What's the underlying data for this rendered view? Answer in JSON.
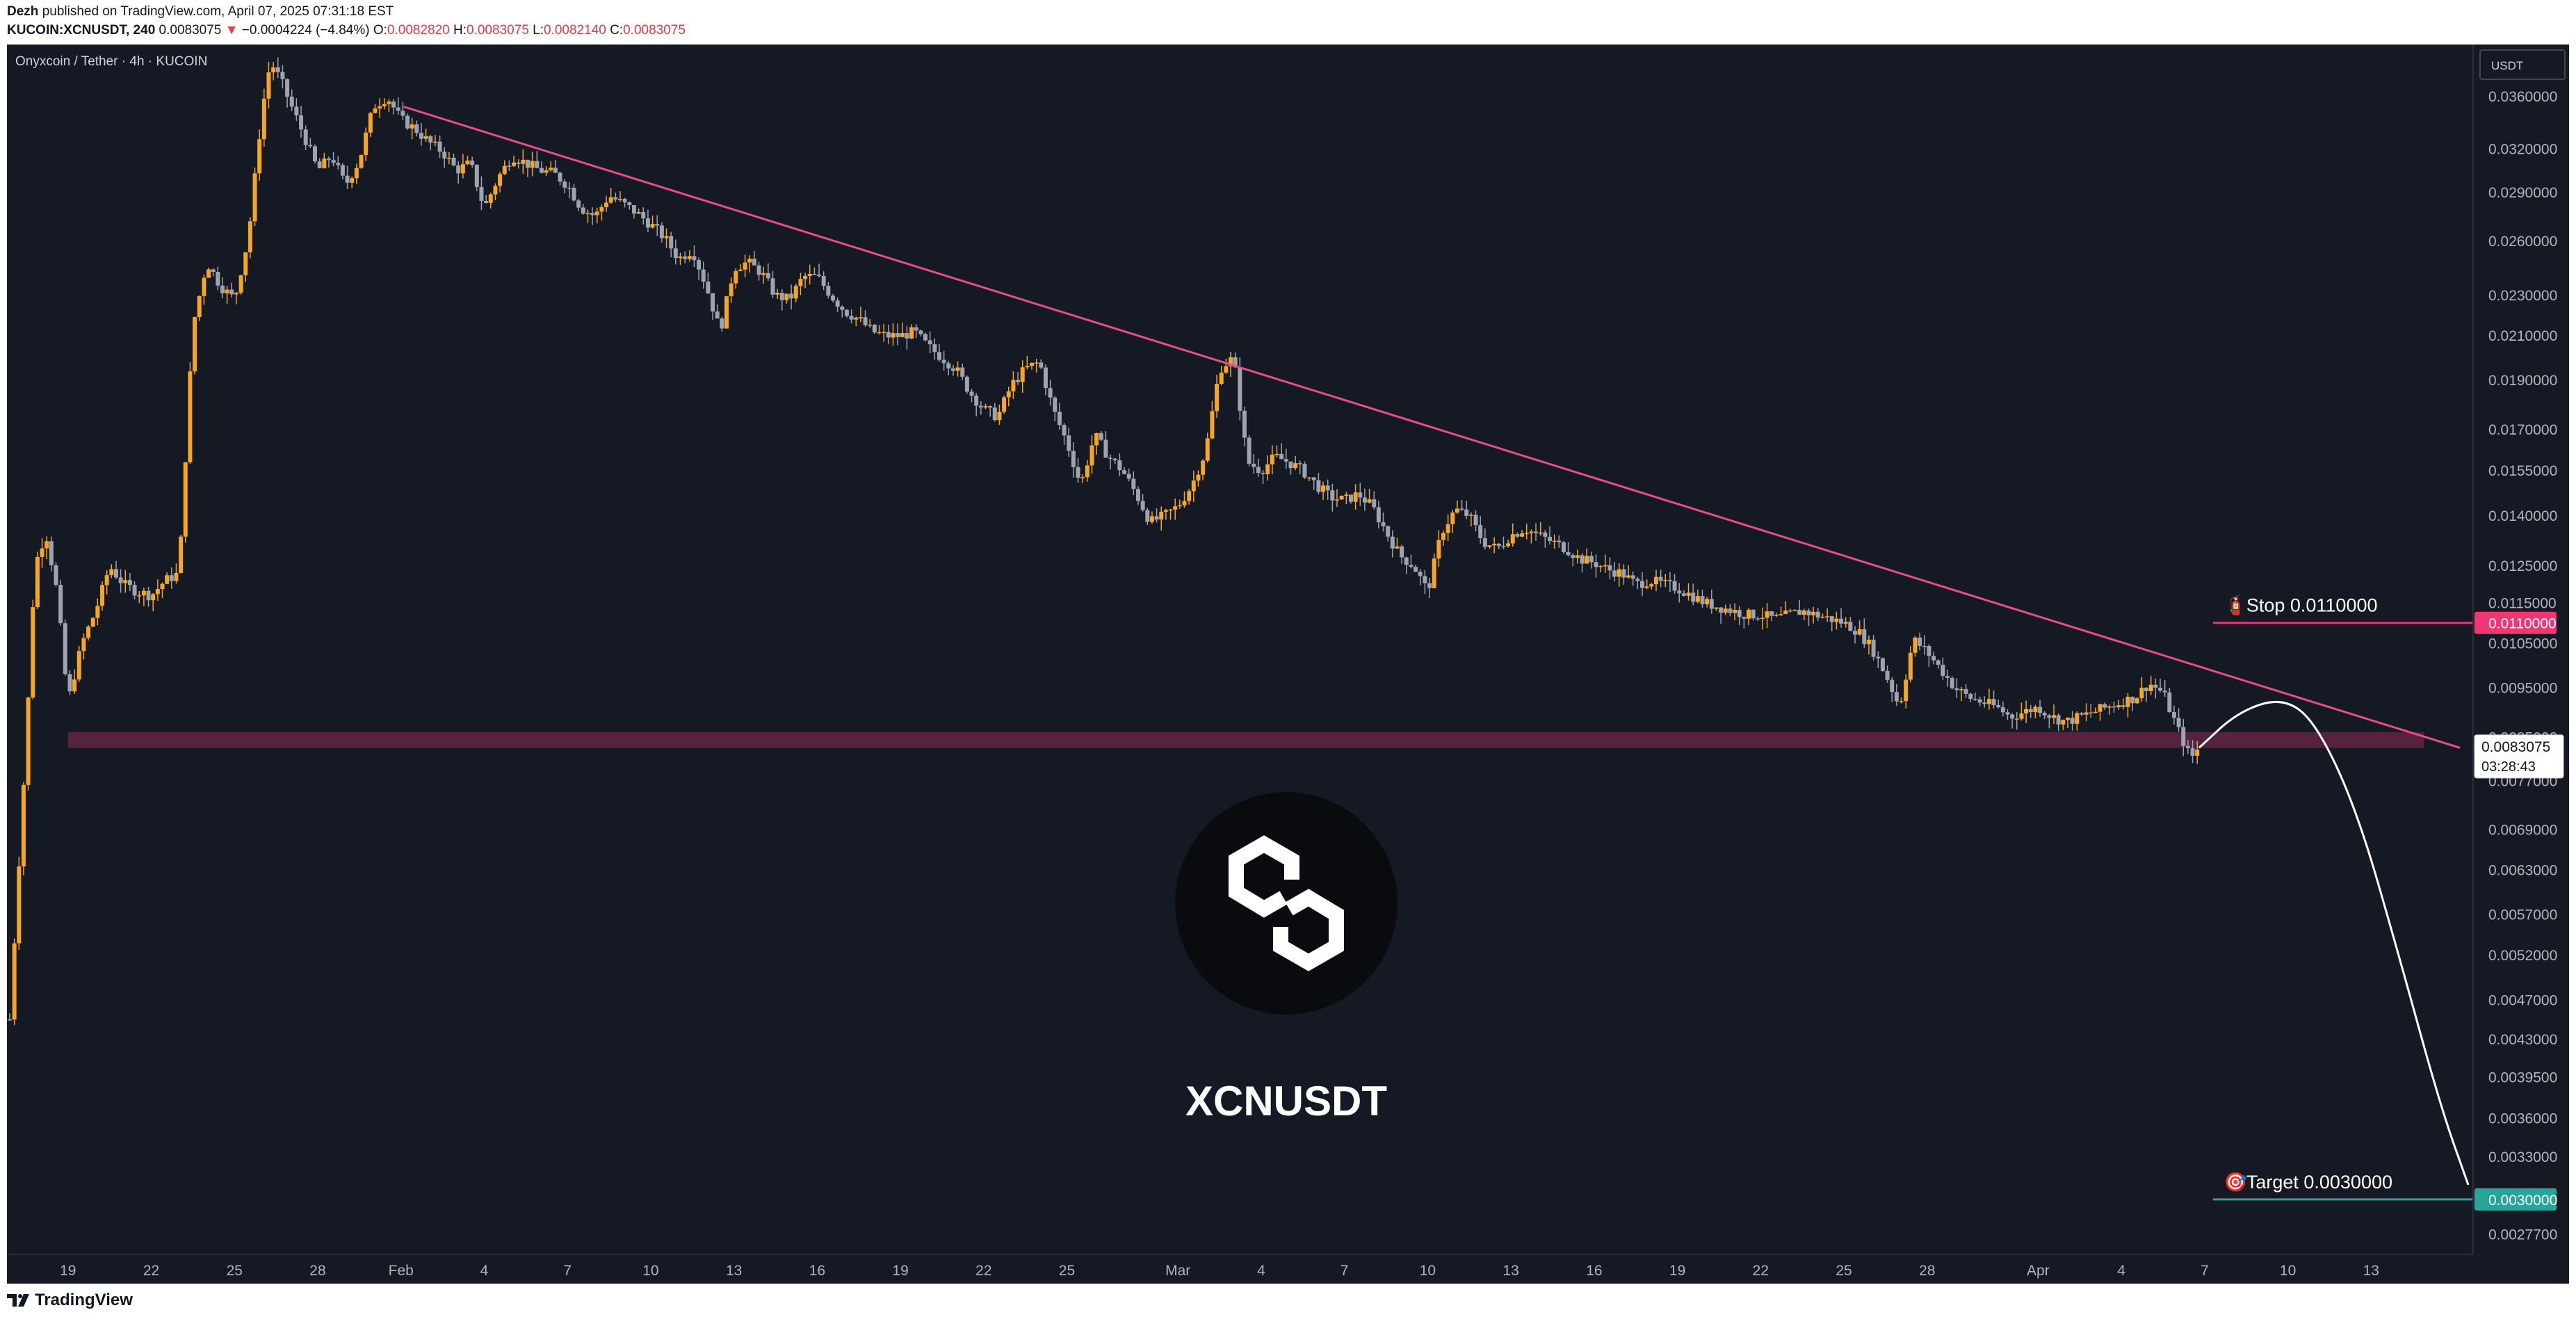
{
  "header": {
    "author": "Dezh",
    "published_text": "published on TradingView.com, April 07, 2025 07:31:18 EST",
    "symbol_line": "KUCOIN:XCNUSDT, 240",
    "last_price": "0.0083075",
    "change_arrow": "▼",
    "change": "−0.0004224 (−4.84%)",
    "o_label": "O:",
    "o_value": "0.0082820",
    "h_label": "H:",
    "h_value": "0.0083075",
    "l_label": "L:",
    "l_value": "0.0082140",
    "c_label": "C:",
    "c_value": "0.0083075"
  },
  "footer": {
    "brand": "TradingView"
  },
  "colors": {
    "background": "#151924",
    "candle_up": "#f5a623",
    "candle_down": "#9ea3b0",
    "trendline": "#e84c8a",
    "zone": "#5e2340",
    "stop": "#f23673",
    "target": "#26a69a",
    "projection": "#ffffff"
  },
  "chart_data": {
    "type": "candlestick",
    "pair_label": "Onyxcoin / Tether · 4h · KUCOIN",
    "currency": "USDT",
    "watermark": "XCNUSDT",
    "watermark_icon": "onyxcoin-logo-icon",
    "y_scale": "log",
    "ylim": [
      0.00265,
      0.0405
    ],
    "y_ticks": [
      "0.0360000",
      "0.0320000",
      "0.0290000",
      "0.0260000",
      "0.0230000",
      "0.0210000",
      "0.0190000",
      "0.0170000",
      "0.0155000",
      "0.0140000",
      "0.0125000",
      "0.0115000",
      "0.0105000",
      "0.0095000",
      "0.0077000",
      "0.0069000",
      "0.0063000",
      "0.0057000",
      "0.0052000",
      "0.0047000",
      "0.0043000",
      "0.0039500",
      "0.0036000",
      "0.0033000",
      "0.0027700"
    ],
    "x_ticks": [
      "19",
      "22",
      "25",
      "28",
      "Feb",
      "4",
      "7",
      "10",
      "13",
      "16",
      "19",
      "22",
      "25",
      "Mar",
      "4",
      "7",
      "10",
      "13",
      "16",
      "19",
      "22",
      "25",
      "28",
      "Apr",
      "4",
      "7",
      "10",
      "13"
    ],
    "x_tick_days": [
      0,
      3,
      6,
      9,
      12,
      15,
      18,
      21,
      24,
      27,
      30,
      33,
      36,
      40,
      43,
      46,
      49,
      52,
      55,
      58,
      61,
      64,
      67,
      71,
      74,
      77,
      80,
      83
    ],
    "xlim_days": [
      -2.2,
      86.5
    ],
    "price_path": [
      [
        -2.1,
        0.0045
      ],
      [
        -1.8,
        0.0062
      ],
      [
        -1.5,
        0.0085
      ],
      [
        -1.2,
        0.0125
      ],
      [
        -0.8,
        0.0135
      ],
      [
        -0.4,
        0.0118
      ],
      [
        0,
        0.0092
      ],
      [
        0.5,
        0.0105
      ],
      [
        1,
        0.0113
      ],
      [
        1.5,
        0.0125
      ],
      [
        2,
        0.012
      ],
      [
        2.5,
        0.0118
      ],
      [
        3,
        0.0117
      ],
      [
        3.5,
        0.0121
      ],
      [
        4,
        0.0123
      ],
      [
        4.5,
        0.0215
      ],
      [
        5,
        0.0248
      ],
      [
        5.5,
        0.0235
      ],
      [
        6,
        0.0228
      ],
      [
        6.5,
        0.0262
      ],
      [
        7,
        0.035
      ],
      [
        7.3,
        0.039
      ],
      [
        7.7,
        0.0372
      ],
      [
        8,
        0.0355
      ],
      [
        8.5,
        0.033
      ],
      [
        9,
        0.0305
      ],
      [
        9.5,
        0.0315
      ],
      [
        10,
        0.0295
      ],
      [
        10.5,
        0.0312
      ],
      [
        11,
        0.0352
      ],
      [
        11.5,
        0.036
      ],
      [
        12,
        0.0342
      ],
      [
        12.5,
        0.0335
      ],
      [
        13,
        0.0325
      ],
      [
        13.5,
        0.0318
      ],
      [
        14,
        0.0305
      ],
      [
        14.5,
        0.031
      ],
      [
        15,
        0.028
      ],
      [
        15.5,
        0.03
      ],
      [
        16,
        0.0315
      ],
      [
        16.5,
        0.031
      ],
      [
        17,
        0.0305
      ],
      [
        17.5,
        0.0303
      ],
      [
        18,
        0.0295
      ],
      [
        18.5,
        0.028
      ],
      [
        19,
        0.0275
      ],
      [
        19.5,
        0.0288
      ],
      [
        20,
        0.0283
      ],
      [
        20.5,
        0.0277
      ],
      [
        21,
        0.027
      ],
      [
        21.5,
        0.0262
      ],
      [
        22,
        0.025
      ],
      [
        22.5,
        0.0255
      ],
      [
        23,
        0.0235
      ],
      [
        23.5,
        0.0212
      ],
      [
        24,
        0.0245
      ],
      [
        24.5,
        0.0248
      ],
      [
        25,
        0.0242
      ],
      [
        25.5,
        0.023
      ],
      [
        26,
        0.0228
      ],
      [
        26.5,
        0.024
      ],
      [
        27,
        0.024
      ],
      [
        27.5,
        0.023
      ],
      [
        28,
        0.0222
      ],
      [
        28.5,
        0.0218
      ],
      [
        29,
        0.0212
      ],
      [
        29.5,
        0.021
      ],
      [
        30,
        0.021
      ],
      [
        30.5,
        0.0212
      ],
      [
        31,
        0.0205
      ],
      [
        31.5,
        0.02
      ],
      [
        32,
        0.0195
      ],
      [
        32.5,
        0.0185
      ],
      [
        33,
        0.0178
      ],
      [
        33.5,
        0.0175
      ],
      [
        34,
        0.0188
      ],
      [
        34.5,
        0.0195
      ],
      [
        35,
        0.0198
      ],
      [
        35.5,
        0.0178
      ],
      [
        36,
        0.0165
      ],
      [
        36.5,
        0.015
      ],
      [
        37,
        0.0168
      ],
      [
        37.5,
        0.016
      ],
      [
        38,
        0.0155
      ],
      [
        38.5,
        0.0147
      ],
      [
        39,
        0.0138
      ],
      [
        39.5,
        0.014
      ],
      [
        40,
        0.0143
      ],
      [
        40.5,
        0.015
      ],
      [
        41,
        0.0162
      ],
      [
        41.5,
        0.0195
      ],
      [
        42,
        0.02
      ],
      [
        42.5,
        0.0158
      ],
      [
        43,
        0.0155
      ],
      [
        43.5,
        0.016
      ],
      [
        44,
        0.0158
      ],
      [
        44.5,
        0.0155
      ],
      [
        45,
        0.015
      ],
      [
        45.5,
        0.0146
      ],
      [
        46,
        0.0145
      ],
      [
        46.5,
        0.0147
      ],
      [
        47,
        0.0143
      ],
      [
        47.5,
        0.0135
      ],
      [
        48,
        0.0128
      ],
      [
        48.5,
        0.0125
      ],
      [
        49,
        0.0118
      ],
      [
        49.5,
        0.0135
      ],
      [
        50,
        0.0142
      ],
      [
        50.5,
        0.014
      ],
      [
        51,
        0.0132
      ],
      [
        51.5,
        0.013
      ],
      [
        52,
        0.0134
      ],
      [
        52.5,
        0.0136
      ],
      [
        53,
        0.0134
      ],
      [
        53.5,
        0.0132
      ],
      [
        54,
        0.013
      ],
      [
        54.5,
        0.0127
      ],
      [
        55,
        0.0126
      ],
      [
        55.5,
        0.0124
      ],
      [
        56,
        0.0123
      ],
      [
        56.5,
        0.012
      ],
      [
        57,
        0.0121
      ],
      [
        57.5,
        0.012
      ],
      [
        58,
        0.0119
      ],
      [
        58.5,
        0.0117
      ],
      [
        59,
        0.0115
      ],
      [
        59.5,
        0.0114
      ],
      [
        60,
        0.0113
      ],
      [
        60.5,
        0.0112
      ],
      [
        61,
        0.0112
      ],
      [
        61.5,
        0.0111
      ],
      [
        62,
        0.0112
      ],
      [
        62.5,
        0.0113
      ],
      [
        63,
        0.0112
      ],
      [
        63.5,
        0.0111
      ],
      [
        64,
        0.011
      ],
      [
        64.5,
        0.0108
      ],
      [
        65,
        0.0104
      ],
      [
        65.5,
        0.0098
      ],
      [
        66,
        0.0091
      ],
      [
        66.5,
        0.0106
      ],
      [
        67,
        0.0103
      ],
      [
        67.5,
        0.0099
      ],
      [
        68,
        0.0095
      ],
      [
        68.5,
        0.0093
      ],
      [
        69,
        0.0092
      ],
      [
        69.5,
        0.0091
      ],
      [
        70,
        0.0089
      ],
      [
        70.5,
        0.009
      ],
      [
        71,
        0.0091
      ],
      [
        71.5,
        0.0089
      ],
      [
        72,
        0.0088
      ],
      [
        72.5,
        0.0089
      ],
      [
        73,
        0.009
      ],
      [
        73.5,
        0.0091
      ],
      [
        74,
        0.0092
      ],
      [
        74.5,
        0.0093
      ],
      [
        75,
        0.0096
      ],
      [
        75.5,
        0.0094
      ],
      [
        76,
        0.0087
      ],
      [
        76.5,
        0.0081
      ],
      [
        76.8,
        0.0083075
      ]
    ],
    "trendline": {
      "start": [
        12.1,
        0.0352
      ],
      "end": [
        86.2,
        0.0083
      ]
    },
    "support_zone": {
      "low": 0.0083,
      "high": 0.0086,
      "x_start": 0,
      "x_end": 84.9
    },
    "stop": {
      "label": "Stop 0.0110000",
      "value": 0.011,
      "x_start": 77.3,
      "axis_label": "0.0110000"
    },
    "target": {
      "label": "Target 0.0030000",
      "value": 0.003,
      "x_start": 77.3,
      "axis_label": "0.0030000"
    },
    "projection_path": [
      [
        76.8,
        0.0083
      ],
      [
        78.2,
        0.009
      ],
      [
        79.8,
        0.0093
      ],
      [
        81.0,
        0.0088
      ],
      [
        82.5,
        0.0072
      ],
      [
        84.0,
        0.0052
      ],
      [
        85.5,
        0.0037
      ],
      [
        86.5,
        0.0031
      ]
    ],
    "price_label": {
      "price": "0.0083075",
      "countdown": "03:28:43",
      "ghost_tick": "0.0085000"
    }
  }
}
